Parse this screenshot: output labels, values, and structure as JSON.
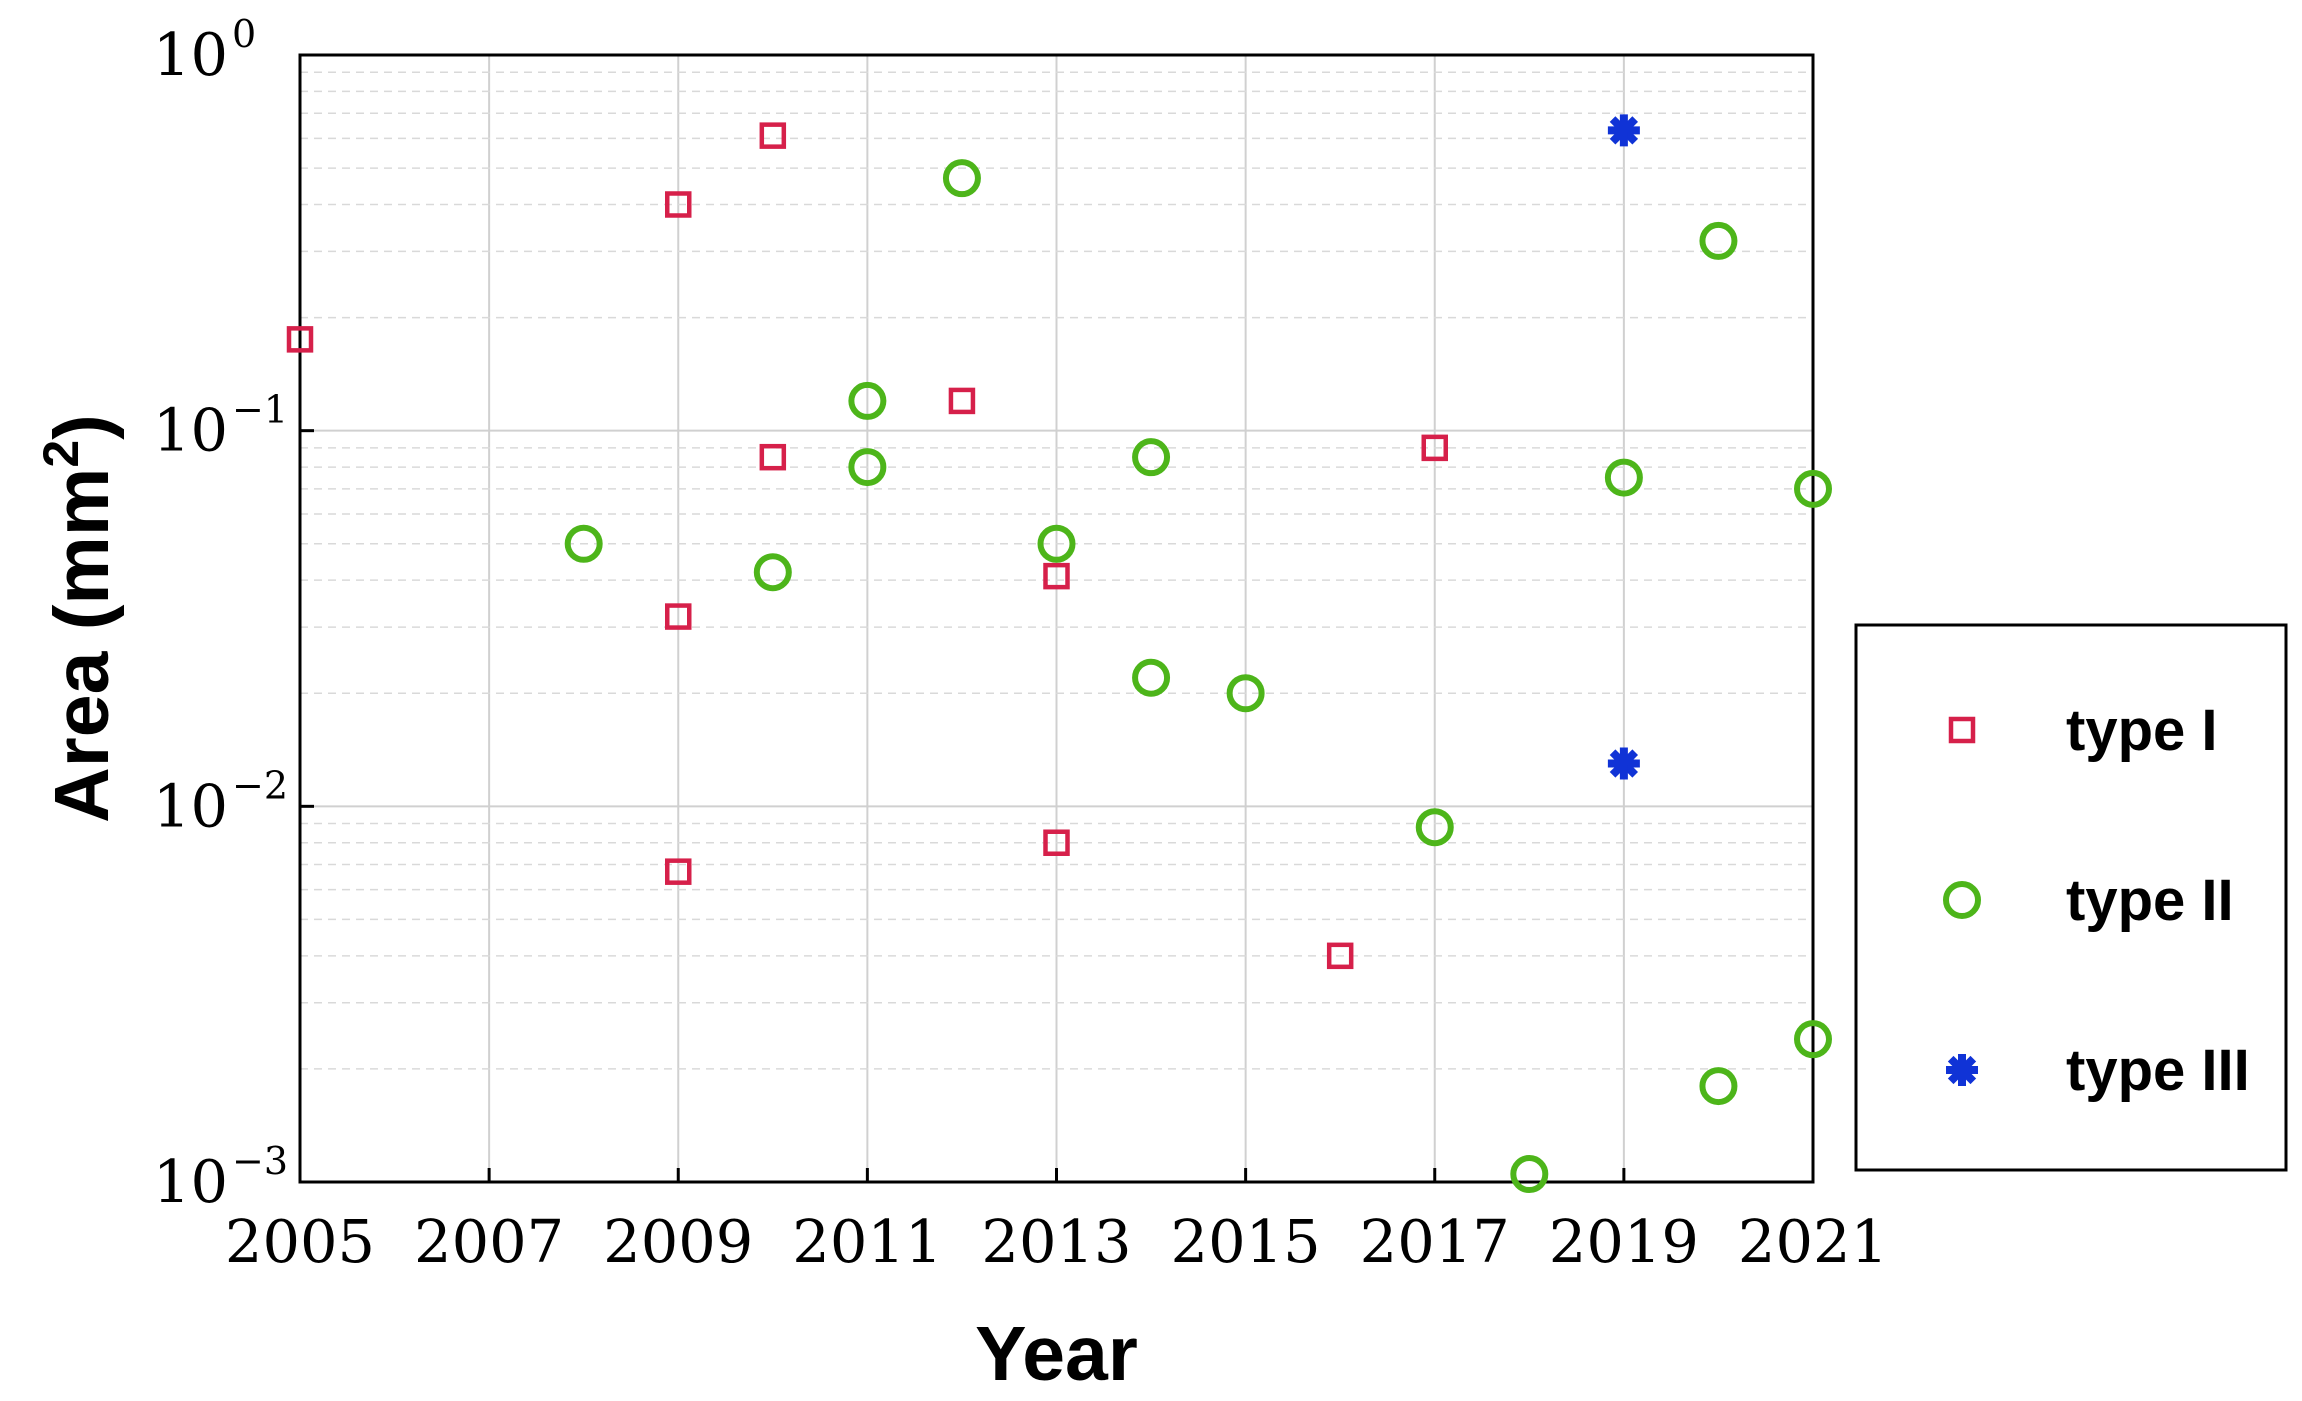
{
  "chart_data": {
    "type": "scatter",
    "xlabel": "Year",
    "ylabel": "Area (mm",
    "ylabel_sup": "2",
    "ylabel_close": ")",
    "xlim": [
      2005,
      2021
    ],
    "ylim": [
      0.001,
      1
    ],
    "yscale": "log",
    "grid": true,
    "legend": "right",
    "x_ticks": [
      "2005",
      "2007",
      "2009",
      "2011",
      "2013",
      "2015",
      "2017",
      "2019",
      "2021"
    ],
    "y_ticks": [
      {
        "base": "10",
        "exp": "−3"
      },
      {
        "base": "10",
        "exp": "−2"
      },
      {
        "base": "10",
        "exp": "−1"
      },
      {
        "base": "10",
        "exp": "0"
      }
    ],
    "series": [
      {
        "name": "type I",
        "marker": "square",
        "color": "#d6204a",
        "points": [
          [
            2005,
            0.175
          ],
          [
            2009,
            0.4
          ],
          [
            2009,
            0.032
          ],
          [
            2009,
            0.0067
          ],
          [
            2010,
            0.61
          ],
          [
            2010,
            0.085
          ],
          [
            2012,
            0.12
          ],
          [
            2013,
            0.041
          ],
          [
            2013,
            0.008
          ],
          [
            2016,
            0.004
          ],
          [
            2017,
            0.09
          ]
        ]
      },
      {
        "name": "type II",
        "marker": "circle",
        "color": "#4db51a",
        "points": [
          [
            2008,
            0.05
          ],
          [
            2010,
            0.042
          ],
          [
            2011,
            0.12
          ],
          [
            2011,
            0.08
          ],
          [
            2012,
            0.47
          ],
          [
            2013,
            0.05
          ],
          [
            2014,
            0.085
          ],
          [
            2014,
            0.022
          ],
          [
            2015,
            0.02
          ],
          [
            2017,
            0.0088
          ],
          [
            2018,
            0.00105
          ],
          [
            2019,
            0.075
          ],
          [
            2020,
            0.32
          ],
          [
            2020,
            0.0018
          ],
          [
            2021,
            0.07
          ],
          [
            2021,
            0.0024
          ]
        ]
      },
      {
        "name": "type III",
        "marker": "asterisk",
        "color": "#1033d6",
        "points": [
          [
            2019,
            0.63
          ],
          [
            2019,
            0.013
          ]
        ]
      }
    ]
  }
}
